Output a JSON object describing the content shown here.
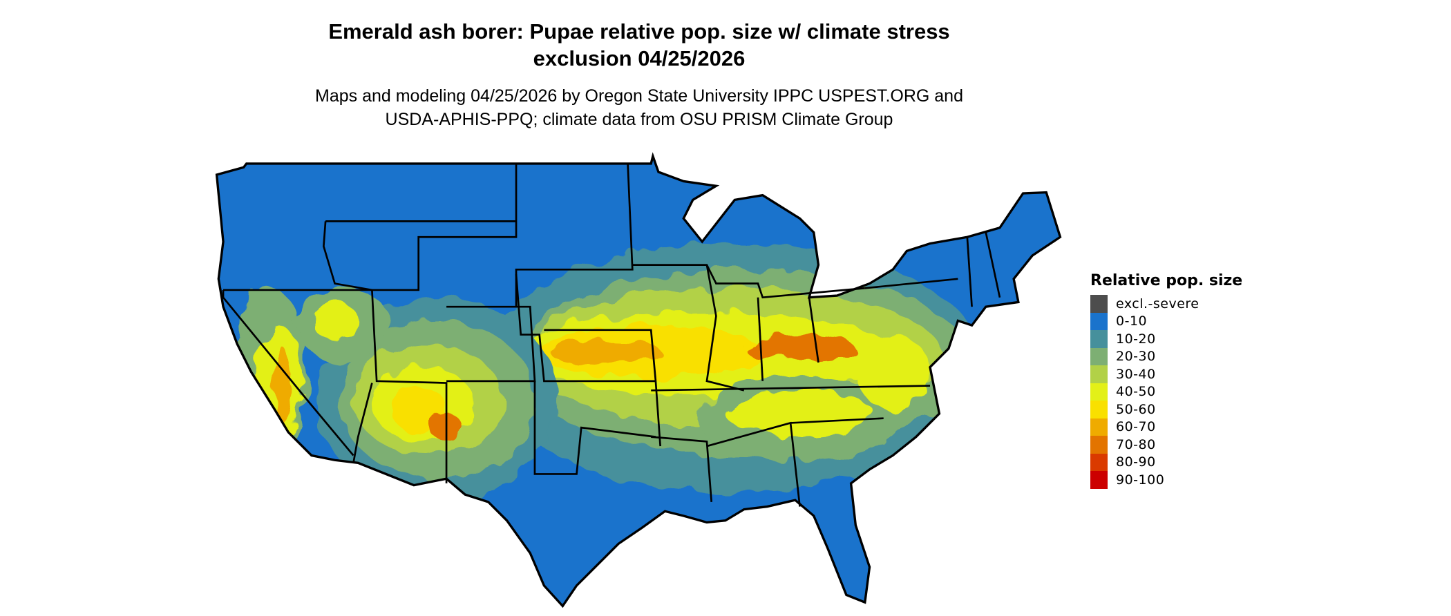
{
  "title_line1": "Emerald ash borer: Pupae relative pop. size w/ climate stress",
  "title_line2": "exclusion 04/25/2026",
  "subtitle_line1": "Maps and modeling 04/25/2026 by Oregon State University IPPC USPEST.ORG and",
  "subtitle_line2": "USDA-APHIS-PPQ; climate data from OSU PRISM Climate Group",
  "chart_data": {
    "type": "heatmap",
    "region": "Contiguous United States",
    "legend": {
      "title": "Relative pop. size",
      "placement": "right",
      "entries": [
        {
          "label": "excl.-severe",
          "color": "#4d4d4d"
        },
        {
          "label": "0-10",
          "color": "#1a73cc"
        },
        {
          "label": "10-20",
          "color": "#46909c"
        },
        {
          "label": "20-30",
          "color": "#7daf73"
        },
        {
          "label": "30-40",
          "color": "#b2d147"
        },
        {
          "label": "40-50",
          "color": "#e3f018"
        },
        {
          "label": "50-60",
          "color": "#f9e000"
        },
        {
          "label": "60-70",
          "color": "#efab00"
        },
        {
          "label": "70-80",
          "color": "#e37400"
        },
        {
          "label": "80-90",
          "color": "#da3a00"
        },
        {
          "label": "90-100",
          "color": "#cc0000"
        }
      ]
    }
  }
}
